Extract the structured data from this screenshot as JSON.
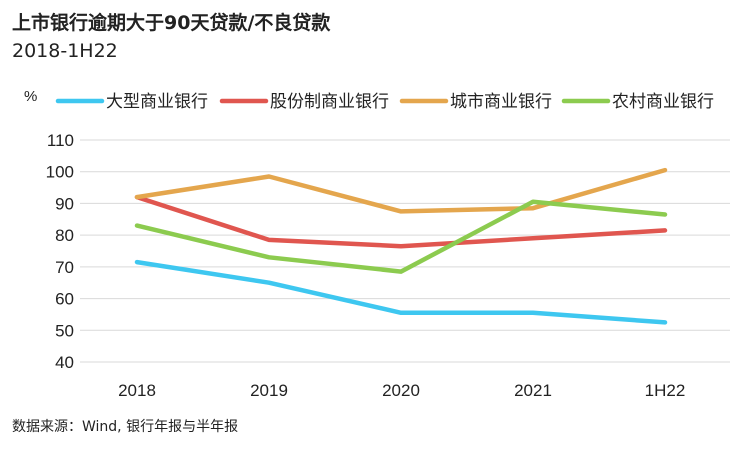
{
  "title": "上市银行逾期大于90天贷款/不良贷款",
  "subtitle": "2018-1H22",
  "source": "数据来源：Wind, 银行年报与半年报",
  "chart_data": {
    "type": "line",
    "unit": "%",
    "categories": [
      "2018",
      "2019",
      "2020",
      "2021",
      "1H22"
    ],
    "ylim": [
      40,
      110
    ],
    "yticks": [
      40,
      50,
      60,
      70,
      80,
      90,
      100,
      110
    ],
    "grid": true,
    "legend_position": "top",
    "series": [
      {
        "name": "大型商业银行",
        "color": "#3ec7f0",
        "values": [
          71.5,
          65,
          55.5,
          55.5,
          52.5
        ]
      },
      {
        "name": "股份制商业银行",
        "color": "#e0564f",
        "values": [
          92,
          78.5,
          76.5,
          79,
          81.5
        ]
      },
      {
        "name": "城市商业银行",
        "color": "#e4a64d",
        "values": [
          92,
          98.5,
          87.5,
          88.5,
          100.5
        ]
      },
      {
        "name": "农村商业银行",
        "color": "#8ccb4f",
        "values": [
          83,
          73,
          68.5,
          90.5,
          86.5
        ]
      }
    ]
  }
}
